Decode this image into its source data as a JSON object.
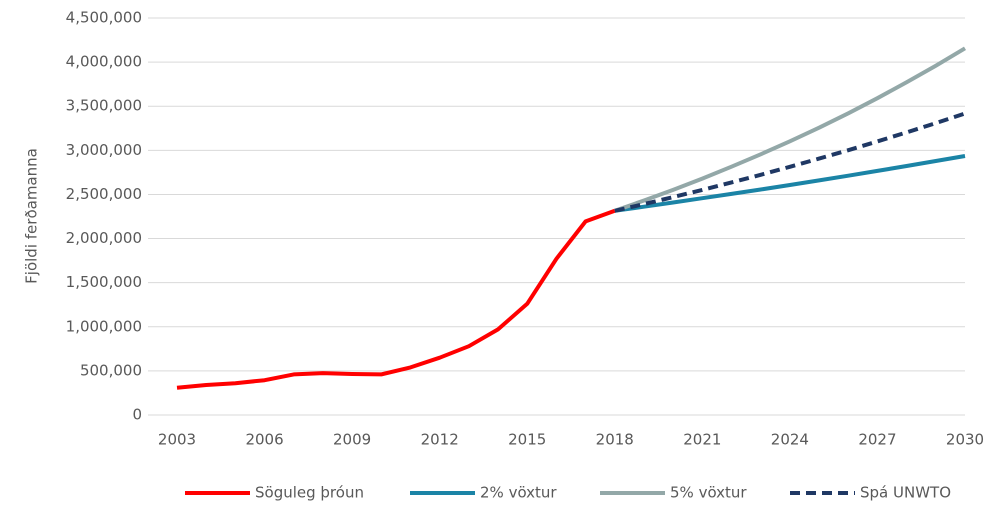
{
  "chart_data": {
    "type": "line",
    "y_label": "Fjöldi ferðamanna",
    "x": [
      2003,
      2004,
      2005,
      2006,
      2007,
      2008,
      2009,
      2010,
      2011,
      2012,
      2013,
      2014,
      2015,
      2016,
      2017,
      2018,
      2019,
      2020,
      2021,
      2022,
      2023,
      2024,
      2025,
      2026,
      2027,
      2028,
      2029,
      2030
    ],
    "series": [
      {
        "name": "Söguleg þróun",
        "color": "#ff0000",
        "linestyle": "solid",
        "values": [
          308000,
          340000,
          360000,
          395000,
          460000,
          475000,
          465000,
          460000,
          540000,
          650000,
          780000,
          970000,
          1260000,
          1770000,
          2195000,
          2315000,
          null,
          null,
          null,
          null,
          null,
          null,
          null,
          null,
          null,
          null,
          null,
          null
        ]
      },
      {
        "name": "2% vöxtur",
        "color": "#1b84a6",
        "linestyle": "solid",
        "values": [
          null,
          null,
          null,
          null,
          null,
          null,
          null,
          null,
          null,
          null,
          null,
          null,
          null,
          null,
          null,
          2315000,
          2361000,
          2409000,
          2457000,
          2506000,
          2556000,
          2607000,
          2659000,
          2713000,
          2767000,
          2822000,
          2879000,
          2936000
        ]
      },
      {
        "name": "5% vöxtur",
        "color": "#93a8a8",
        "linestyle": "solid",
        "values": [
          null,
          null,
          null,
          null,
          null,
          null,
          null,
          null,
          null,
          null,
          null,
          null,
          null,
          null,
          null,
          2315000,
          2431000,
          2552000,
          2680000,
          2814000,
          2955000,
          3102000,
          3257000,
          3420000,
          3591000,
          3771000,
          3959000,
          4157000
        ]
      },
      {
        "name": "Spá UNWTO",
        "color": "#1f3864",
        "linestyle": "dashed",
        "values": [
          null,
          null,
          null,
          null,
          null,
          null,
          null,
          null,
          null,
          null,
          null,
          null,
          null,
          null,
          null,
          2315000,
          2391000,
          2470000,
          2552000,
          2636000,
          2723000,
          2813000,
          2906000,
          3002000,
          3101000,
          3203000,
          3309000,
          3418000
        ]
      }
    ],
    "xlim": [
      2003,
      2030
    ],
    "xticks": [
      2003,
      2006,
      2009,
      2012,
      2015,
      2018,
      2021,
      2024,
      2027,
      2030
    ],
    "ylim": [
      0,
      4500000
    ],
    "yticks": [
      0,
      {
        "value": 500000,
        "label": "500,000"
      },
      {
        "value": 1000000,
        "label": "1,000,000"
      },
      {
        "value": 1500000,
        "label": "1,500,000"
      },
      {
        "value": 2000000,
        "label": "2,000,000"
      },
      {
        "value": 2500000,
        "label": "2,500,000"
      },
      {
        "value": 3000000,
        "label": "3,000,000"
      },
      {
        "value": 3500000,
        "label": "3,500,000"
      },
      {
        "value": 4000000,
        "label": "4,000,000"
      },
      {
        "value": 4500000,
        "label": "4,500,000"
      }
    ],
    "grid": true,
    "legend": "bottom"
  }
}
